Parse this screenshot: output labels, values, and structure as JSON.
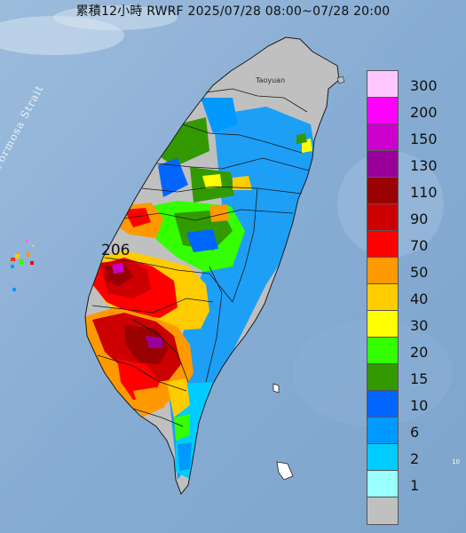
{
  "title": "累積12小時 RWRF 2025/07/28 08:00~07/28 20:00",
  "labels": {
    "strait": "Formosa Strait",
    "city": "Taoyuan",
    "peak": "206",
    "edge_mark": "10"
  },
  "legend": {
    "units_note": "",
    "entries": [
      {
        "label": "300",
        "color": "#ffc6ff"
      },
      {
        "label": "200",
        "color": "#ff00ff"
      },
      {
        "label": "150",
        "color": "#cc00cc"
      },
      {
        "label": "130",
        "color": "#990099"
      },
      {
        "label": "110",
        "color": "#990000"
      },
      {
        "label": "90",
        "color": "#cc0000"
      },
      {
        "label": "70",
        "color": "#ff0000"
      },
      {
        "label": "50",
        "color": "#ff9900"
      },
      {
        "label": "40",
        "color": "#ffcc00"
      },
      {
        "label": "30",
        "color": "#ffff00"
      },
      {
        "label": "20",
        "color": "#33ff00"
      },
      {
        "label": "15",
        "color": "#339900"
      },
      {
        "label": "10",
        "color": "#0066ff"
      },
      {
        "label": "6",
        "color": "#0099ff"
      },
      {
        "label": "2",
        "color": "#00ccff"
      },
      {
        "label": "1",
        "color": "#99ffff"
      },
      {
        "label": "",
        "color": "#c0c0c0"
      }
    ]
  },
  "colors": {
    "sea": "#8fb3d6",
    "land_dry": "#c0c0c0"
  }
}
